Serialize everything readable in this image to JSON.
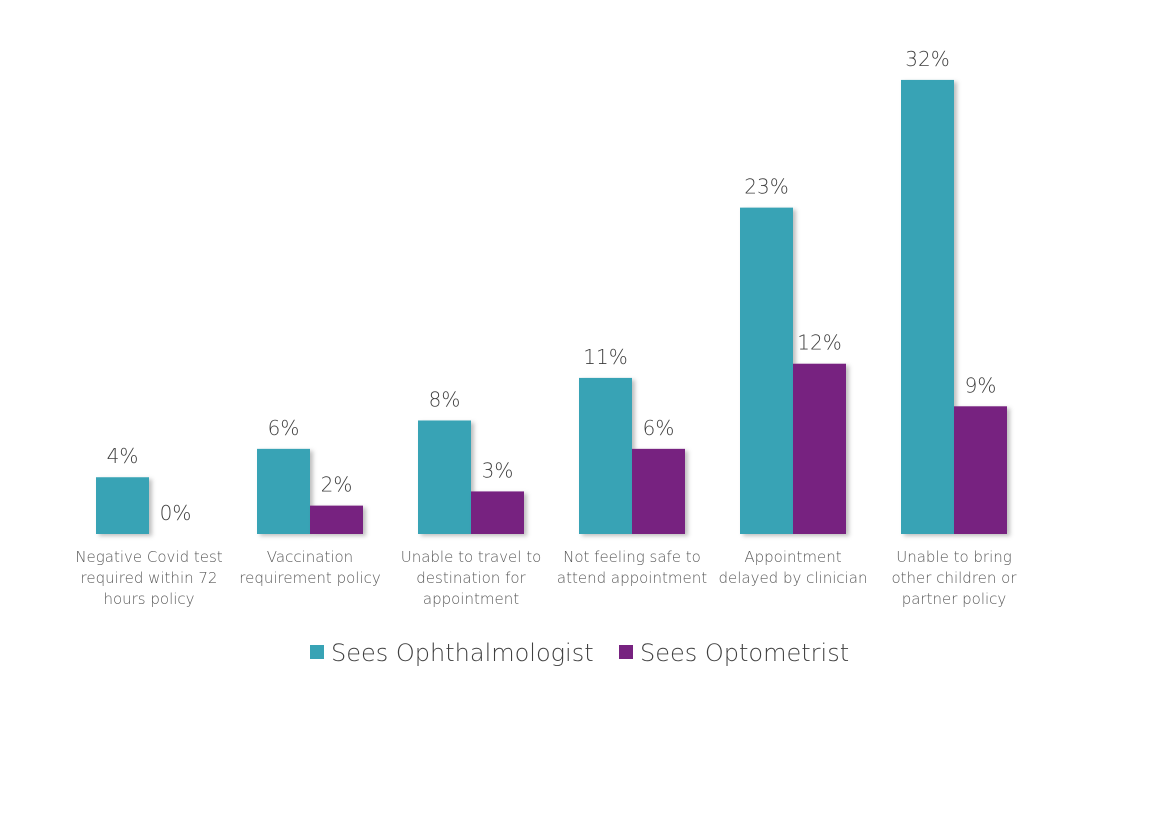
{
  "chart_data": {
    "type": "bar",
    "categories": [
      "Negative Covid test required within 72 hours policy",
      "Vaccination requirement policy",
      "Unable to travel to destination for appointment",
      "Not feeling safe to attend appointment",
      "Appointment delayed by clinician",
      "Unable to bring other children or partner policy"
    ],
    "category_lines": [
      [
        "Negative Covid test",
        "required within 72",
        "hours policy"
      ],
      [
        "Vaccination",
        "requirement policy"
      ],
      [
        "Unable to travel to",
        "destination for",
        "appointment"
      ],
      [
        "Not feeling safe to",
        "attend appointment"
      ],
      [
        "Appointment",
        "delayed by clinician"
      ],
      [
        "Unable to bring",
        "other children or",
        "partner policy"
      ]
    ],
    "series": [
      {
        "name": "Sees Ophthalmologist",
        "color": "#38a3b5",
        "values": [
          4,
          6,
          8,
          11,
          23,
          32
        ],
        "labels": [
          "4%",
          "6%",
          "8%",
          "11%",
          "23%",
          "32%"
        ]
      },
      {
        "name": "Sees Optometrist",
        "color": "#772280",
        "values": [
          0,
          2,
          3,
          6,
          12,
          9
        ],
        "labels": [
          "0%",
          "2%",
          "3%",
          "6%",
          "12%",
          "9%"
        ]
      }
    ],
    "ylim": [
      0,
      32
    ],
    "grid": false,
    "legend_position": "bottom"
  }
}
